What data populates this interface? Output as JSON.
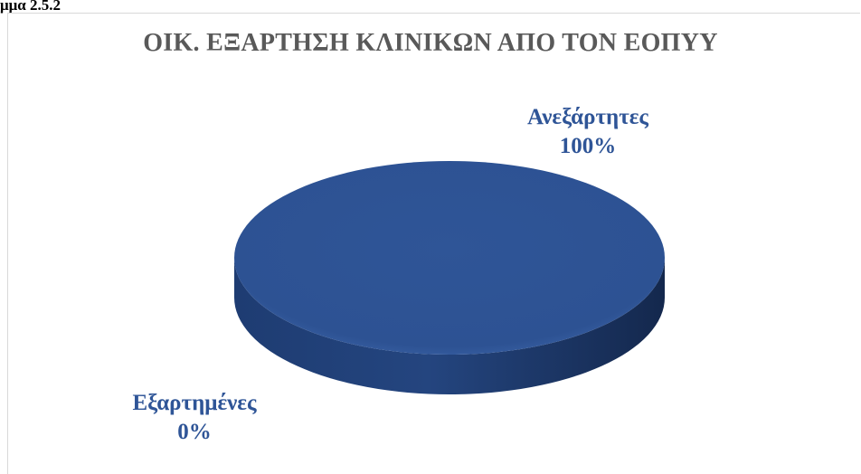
{
  "caption": "μμα 2.5.2",
  "colors": {
    "title": "#595959",
    "slice_main": "#2F5597",
    "slice_dark": "#1B3668",
    "labels": "#2F5597"
  },
  "chart_data": {
    "type": "pie",
    "title": "ΟΙΚ. ΕΞΑΡΤΗΣΗ ΚΛΙΝΙΚΩΝ ΑΠΟ ΤΟΝ ΕΟΠΥΥ",
    "style": "3d",
    "slices": [
      {
        "label": "Ανεξάρτητες",
        "value": 100,
        "percent_label": "100%"
      },
      {
        "label": "Εξαρτημένες",
        "value": 0,
        "percent_label": "0%"
      }
    ]
  }
}
